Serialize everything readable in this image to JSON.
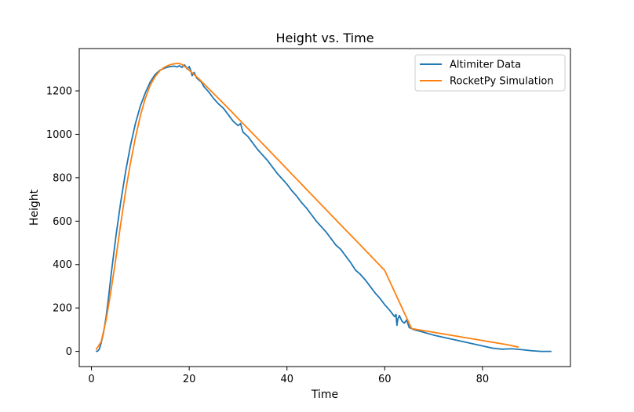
{
  "chart_data": {
    "type": "line",
    "title": "Height vs. Time",
    "xlabel": "Time",
    "ylabel": "Height",
    "xlim": [
      -2.5,
      98
    ],
    "ylim": [
      -70,
      1395
    ],
    "xticks": [
      0,
      20,
      40,
      60,
      80
    ],
    "yticks": [
      0,
      200,
      400,
      600,
      800,
      1000,
      1200
    ],
    "legend_position": "top-right",
    "grid": false,
    "series": [
      {
        "name": "Altimiter Data",
        "color": "#1f77b4",
        "x": [
          1.0,
          1.3,
          1.6,
          2.0,
          2.5,
          3.0,
          3.5,
          4.0,
          5.0,
          6.0,
          7.0,
          8.0,
          9.0,
          10.0,
          11.0,
          12.0,
          13.0,
          14.0,
          15.0,
          16.0,
          17.0,
          17.5,
          18.0,
          18.5,
          19.0,
          19.3,
          19.6,
          20.0,
          20.3,
          20.6,
          21.0,
          21.5,
          22.0,
          22.5,
          23.0,
          24.0,
          25.0,
          26.0,
          27.0,
          28.0,
          29.0,
          30.0,
          30.5,
          31.0,
          32.0,
          33.0,
          34.0,
          35.0,
          36.0,
          37.0,
          38.0,
          39.0,
          40.0,
          41.0,
          42.0,
          43.0,
          44.0,
          45.0,
          46.0,
          47.0,
          48.0,
          49.0,
          50.0,
          51.0,
          52.0,
          53.0,
          54.0,
          55.0,
          56.0,
          57.0,
          58.0,
          59.0,
          60.0,
          61.0,
          62.0,
          62.3,
          62.5,
          62.7,
          63.0,
          63.5,
          64.0,
          64.5,
          65.0,
          66.0,
          68.0,
          70.0,
          72.0,
          74.0,
          76.0,
          78.0,
          80.0,
          82.0,
          84.0,
          86.0,
          88.0,
          90.0,
          92.0,
          93.0,
          94.0
        ],
        "y": [
          0,
          2,
          10,
          40,
          90,
          160,
          250,
          350,
          530,
          690,
          830,
          950,
          1050,
          1130,
          1190,
          1240,
          1275,
          1295,
          1305,
          1312,
          1314,
          1310,
          1316,
          1308,
          1320,
          1312,
          1300,
          1312,
          1295,
          1270,
          1285,
          1260,
          1250,
          1240,
          1220,
          1195,
          1165,
          1140,
          1120,
          1090,
          1060,
          1040,
          1050,
          1010,
          990,
          960,
          930,
          905,
          880,
          850,
          820,
          795,
          770,
          740,
          715,
          685,
          660,
          630,
          600,
          575,
          550,
          520,
          490,
          470,
          440,
          410,
          375,
          355,
          330,
          300,
          270,
          245,
          215,
          190,
          160,
          170,
          120,
          150,
          165,
          140,
          130,
          145,
          110,
          100,
          88,
          75,
          65,
          55,
          45,
          35,
          25,
          15,
          10,
          12,
          8,
          3,
          0,
          0,
          0
        ]
      },
      {
        "name": "RocketPy Simulation",
        "color": "#ff7f0e",
        "x": [
          1.0,
          2.0,
          3.0,
          4.0,
          5.0,
          6.0,
          7.0,
          8.0,
          9.0,
          10.0,
          11.0,
          12.0,
          13.0,
          14.0,
          15.0,
          16.0,
          17.0,
          17.8,
          18.5,
          19.5,
          20.5,
          22.0,
          24.0,
          26.0,
          28.0,
          30.0,
          35.0,
          40.0,
          45.0,
          50.0,
          55.0,
          60.0,
          65.5,
          70.0,
          75.0,
          80.0,
          85.0,
          87.3
        ],
        "y": [
          10,
          45,
          145,
          280,
          430,
          590,
          740,
          870,
          985,
          1085,
          1165,
          1225,
          1265,
          1293,
          1310,
          1320,
          1325,
          1327,
          1322,
          1305,
          1285,
          1255,
          1210,
          1165,
          1120,
          1073,
          957,
          840,
          723,
          606,
          490,
          373,
          105,
          88,
          69,
          50,
          31,
          20
        ]
      }
    ]
  }
}
